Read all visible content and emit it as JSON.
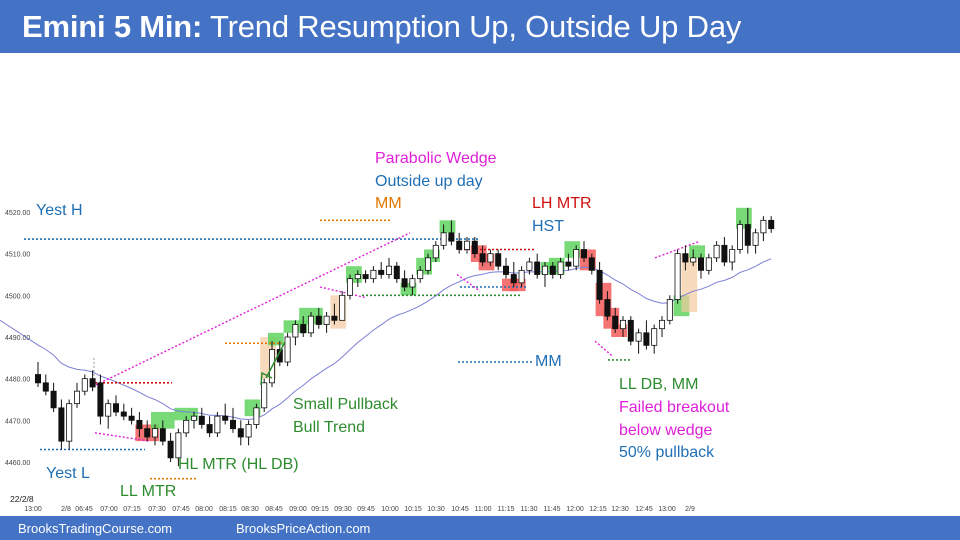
{
  "header": {
    "title_bold": "Emini 5 Min:",
    "title_rest": " Trend Resumption Up, Outside Up Day"
  },
  "footer": {
    "left": "BrooksTradingCourse.com",
    "right": "BrooksPriceAction.com"
  },
  "colors": {
    "header_bg": "#4472c4",
    "bull_highlight": "#5fd35f",
    "bear_highlight": "#f25a5a",
    "ema": "#7b7fd6",
    "magenta": "#e020d8",
    "red": "#d01010",
    "blue": "#1f6fb5",
    "green": "#2e8b2e",
    "orange": "#e07800"
  },
  "chart_data": {
    "type": "candlestick",
    "instrument": "Emini",
    "timeframe": "5 Min",
    "date_label": "22/2/8",
    "ylim": [
      4457,
      4525
    ],
    "y_ticks": [
      "4460.00",
      "4470.00",
      "4480.00",
      "4490.00",
      "4500.00",
      "4510.00",
      "4520.00"
    ],
    "x_ticks": [
      "13:00",
      "2/8",
      "06:45",
      "07:00",
      "07:15",
      "07:30",
      "07:45",
      "08:00",
      "08:15",
      "08:30",
      "08:45",
      "09:00",
      "09:15",
      "09:30",
      "09:45",
      "10:00",
      "10:15",
      "10:30",
      "10:45",
      "11:00",
      "11:15",
      "11:30",
      "11:45",
      "12:00",
      "12:15",
      "12:30",
      "12:45",
      "13:00",
      "2/9"
    ],
    "bars": [
      {
        "o": 4481,
        "h": 4484,
        "l": 4478,
        "c": 4479
      },
      {
        "o": 4479,
        "h": 4481,
        "l": 4476,
        "c": 4477
      },
      {
        "o": 4477,
        "h": 4479,
        "l": 4472,
        "c": 4473
      },
      {
        "o": 4473,
        "h": 4475,
        "l": 4463,
        "c": 4465
      },
      {
        "o": 4465,
        "h": 4475,
        "l": 4463,
        "c": 4474
      },
      {
        "o": 4474,
        "h": 4479,
        "l": 4473,
        "c": 4477
      },
      {
        "o": 4477,
        "h": 4481,
        "l": 4476,
        "c": 4480
      },
      {
        "o": 4480,
        "h": 4482,
        "l": 4477,
        "c": 4478
      },
      {
        "o": 4479,
        "h": 4481,
        "l": 4469,
        "c": 4471
      },
      {
        "o": 4471,
        "h": 4475,
        "l": 4468,
        "c": 4474
      },
      {
        "o": 4474,
        "h": 4476,
        "l": 4471,
        "c": 4472
      },
      {
        "o": 4472,
        "h": 4474,
        "l": 4470,
        "c": 4471
      },
      {
        "o": 4471,
        "h": 4473,
        "l": 4469,
        "c": 4470
      },
      {
        "o": 4470,
        "h": 4472,
        "l": 4466,
        "c": 4468
      },
      {
        "o": 4468,
        "h": 4470,
        "l": 4465,
        "c": 4466
      },
      {
        "o": 4466,
        "h": 4469,
        "l": 4464,
        "c": 4468
      },
      {
        "o": 4468,
        "h": 4470,
        "l": 4464,
        "c": 4465
      },
      {
        "o": 4465,
        "h": 4467,
        "l": 4460,
        "c": 4461
      },
      {
        "o": 4461,
        "h": 4468,
        "l": 4459,
        "c": 4467
      },
      {
        "o": 4467,
        "h": 4471,
        "l": 4466,
        "c": 4470
      },
      {
        "o": 4470,
        "h": 4472,
        "l": 4468,
        "c": 4471
      },
      {
        "o": 4471,
        "h": 4473,
        "l": 4468,
        "c": 4469
      },
      {
        "o": 4469,
        "h": 4471,
        "l": 4466,
        "c": 4467
      },
      {
        "o": 4467,
        "h": 4472,
        "l": 4466,
        "c": 4471
      },
      {
        "o": 4471,
        "h": 4474,
        "l": 4469,
        "c": 4470
      },
      {
        "o": 4470,
        "h": 4473,
        "l": 4467,
        "c": 4468
      },
      {
        "o": 4468,
        "h": 4470,
        "l": 4464,
        "c": 4466
      },
      {
        "o": 4466,
        "h": 4470,
        "l": 4464,
        "c": 4469
      },
      {
        "o": 4469,
        "h": 4474,
        "l": 4468,
        "c": 4473
      },
      {
        "o": 4473,
        "h": 4480,
        "l": 4472,
        "c": 4479
      },
      {
        "o": 4479,
        "h": 4489,
        "l": 4478,
        "c": 4487
      },
      {
        "o": 4487,
        "h": 4489,
        "l": 4483,
        "c": 4484
      },
      {
        "o": 4484,
        "h": 4491,
        "l": 4483,
        "c": 4490
      },
      {
        "o": 4490,
        "h": 4494,
        "l": 4488,
        "c": 4493
      },
      {
        "o": 4493,
        "h": 4495,
        "l": 4490,
        "c": 4491
      },
      {
        "o": 4491,
        "h": 4496,
        "l": 4490,
        "c": 4495
      },
      {
        "o": 4495,
        "h": 4497,
        "l": 4492,
        "c": 4493
      },
      {
        "o": 4493,
        "h": 4496,
        "l": 4491,
        "c": 4495
      },
      {
        "o": 4495,
        "h": 4498,
        "l": 4493,
        "c": 4494
      },
      {
        "o": 4494,
        "h": 4501,
        "l": 4494,
        "c": 4500
      },
      {
        "o": 4500,
        "h": 4505,
        "l": 4499,
        "c": 4504
      },
      {
        "o": 4504,
        "h": 4506,
        "l": 4502,
        "c": 4505
      },
      {
        "o": 4505,
        "h": 4506,
        "l": 4503,
        "c": 4504
      },
      {
        "o": 4504,
        "h": 4507,
        "l": 4503,
        "c": 4506
      },
      {
        "o": 4506,
        "h": 4508,
        "l": 4504,
        "c": 4505
      },
      {
        "o": 4505,
        "h": 4509,
        "l": 4504,
        "c": 4507
      },
      {
        "o": 4507,
        "h": 4508,
        "l": 4503,
        "c": 4504
      },
      {
        "o": 4504,
        "h": 4506,
        "l": 4501,
        "c": 4502
      },
      {
        "o": 4502,
        "h": 4505,
        "l": 4500,
        "c": 4504
      },
      {
        "o": 4504,
        "h": 4507,
        "l": 4503,
        "c": 4506
      },
      {
        "o": 4506,
        "h": 4510,
        "l": 4505,
        "c": 4509
      },
      {
        "o": 4509,
        "h": 4513,
        "l": 4508,
        "c": 4512
      },
      {
        "o": 4512,
        "h": 4517,
        "l": 4511,
        "c": 4515
      },
      {
        "o": 4515,
        "h": 4518,
        "l": 4512,
        "c": 4513
      },
      {
        "o": 4513,
        "h": 4515,
        "l": 4510,
        "c": 4511
      },
      {
        "o": 4511,
        "h": 4514,
        "l": 4510,
        "c": 4513
      },
      {
        "o": 4513,
        "h": 4514,
        "l": 4509,
        "c": 4510
      },
      {
        "o": 4510,
        "h": 4512,
        "l": 4507,
        "c": 4508
      },
      {
        "o": 4508,
        "h": 4511,
        "l": 4507,
        "c": 4510
      },
      {
        "o": 4510,
        "h": 4511,
        "l": 4506,
        "c": 4507
      },
      {
        "o": 4507,
        "h": 4509,
        "l": 4504,
        "c": 4505
      },
      {
        "o": 4505,
        "h": 4508,
        "l": 4502,
        "c": 4503
      },
      {
        "o": 4503,
        "h": 4507,
        "l": 4502,
        "c": 4506
      },
      {
        "o": 4506,
        "h": 4509,
        "l": 4505,
        "c": 4508
      },
      {
        "o": 4508,
        "h": 4510,
        "l": 4504,
        "c": 4505
      },
      {
        "o": 4505,
        "h": 4508,
        "l": 4502,
        "c": 4507
      },
      {
        "o": 4507,
        "h": 4508,
        "l": 4504,
        "c": 4505
      },
      {
        "o": 4505,
        "h": 4509,
        "l": 4504,
        "c": 4508
      },
      {
        "o": 4508,
        "h": 4510,
        "l": 4506,
        "c": 4507
      },
      {
        "o": 4507,
        "h": 4512,
        "l": 4506,
        "c": 4511
      },
      {
        "o": 4511,
        "h": 4513,
        "l": 4508,
        "c": 4509
      },
      {
        "o": 4509,
        "h": 4510,
        "l": 4505,
        "c": 4506
      },
      {
        "o": 4506,
        "h": 4508,
        "l": 4498,
        "c": 4499
      },
      {
        "o": 4499,
        "h": 4501,
        "l": 4494,
        "c": 4495
      },
      {
        "o": 4495,
        "h": 4497,
        "l": 4491,
        "c": 4492
      },
      {
        "o": 4492,
        "h": 4495,
        "l": 4490,
        "c": 4494
      },
      {
        "o": 4494,
        "h": 4495,
        "l": 4488,
        "c": 4489
      },
      {
        "o": 4489,
        "h": 4492,
        "l": 4486,
        "c": 4491
      },
      {
        "o": 4491,
        "h": 4494,
        "l": 4487,
        "c": 4488
      },
      {
        "o": 4488,
        "h": 4493,
        "l": 4486,
        "c": 4492
      },
      {
        "o": 4492,
        "h": 4495,
        "l": 4490,
        "c": 4494
      },
      {
        "o": 4494,
        "h": 4500,
        "l": 4493,
        "c": 4499
      },
      {
        "o": 4499,
        "h": 4511,
        "l": 4498,
        "c": 4510
      },
      {
        "o": 4510,
        "h": 4512,
        "l": 4506,
        "c": 4508
      },
      {
        "o": 4508,
        "h": 4511,
        "l": 4507,
        "c": 4509
      },
      {
        "o": 4509,
        "h": 4510,
        "l": 4504,
        "c": 4506
      },
      {
        "o": 4506,
        "h": 4510,
        "l": 4505,
        "c": 4509
      },
      {
        "o": 4509,
        "h": 4513,
        "l": 4508,
        "c": 4512
      },
      {
        "o": 4512,
        "h": 4514,
        "l": 4507,
        "c": 4508
      },
      {
        "o": 4508,
        "h": 4512,
        "l": 4506,
        "c": 4511
      },
      {
        "o": 4511,
        "h": 4518,
        "l": 4510,
        "c": 4517
      },
      {
        "o": 4517,
        "h": 4521,
        "l": 4510,
        "c": 4512
      },
      {
        "o": 4512,
        "h": 4516,
        "l": 4510,
        "c": 4515
      },
      {
        "o": 4515,
        "h": 4519,
        "l": 4513,
        "c": 4518
      },
      {
        "o": 4518,
        "h": 4519,
        "l": 4515,
        "c": 4516
      }
    ],
    "annotations": [
      {
        "text": "Yest H",
        "color": "#1f6fb5"
      },
      {
        "text": "Yest L",
        "color": "#1f6fb5"
      },
      {
        "text": "LL MTR",
        "color": "#2e8b2e"
      },
      {
        "text": "HL MTR (HL DB)",
        "color": "#2e8b2e"
      },
      {
        "text": "Small Pullback",
        "color": "#2e8b2e"
      },
      {
        "text": "Bull Trend",
        "color": "#2e8b2e"
      },
      {
        "text": "Parabolic Wedge",
        "color": "#e020d8"
      },
      {
        "text": "Outside up day",
        "color": "#1f6fb5"
      },
      {
        "text": "MM",
        "color": "#e07800"
      },
      {
        "text": "LH MTR",
        "color": "#d01010"
      },
      {
        "text": "HST",
        "color": "#1f6fb5"
      },
      {
        "text": "MM",
        "color": "#1f6fb5"
      },
      {
        "text": "LL DB, MM",
        "color": "#2e8b2e"
      },
      {
        "text": "Failed breakout",
        "color": "#e020d8"
      },
      {
        "text": "below wedge",
        "color": "#e020d8"
      },
      {
        "text": "50% pullback",
        "color": "#1f6fb5"
      }
    ]
  }
}
